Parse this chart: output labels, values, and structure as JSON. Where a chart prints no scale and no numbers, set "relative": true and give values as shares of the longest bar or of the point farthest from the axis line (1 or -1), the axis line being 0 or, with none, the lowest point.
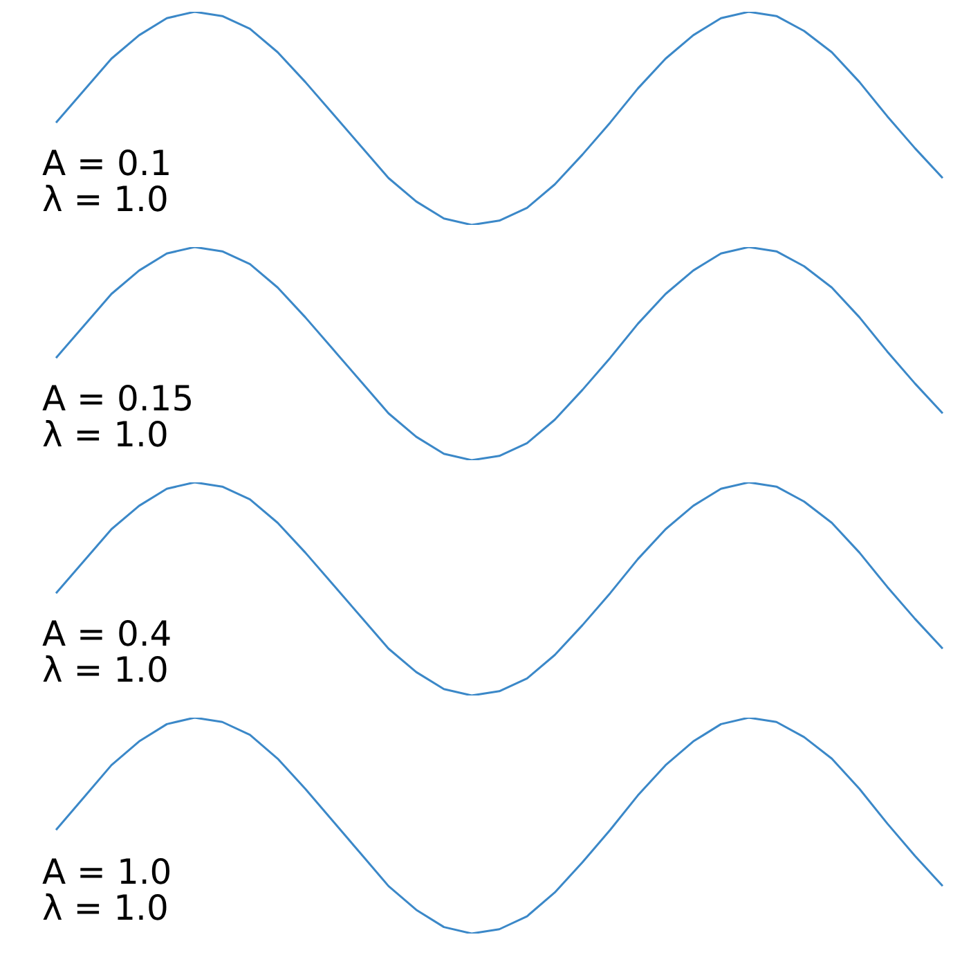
{
  "chart_data": [
    {
      "type": "line",
      "relative": true,
      "categories": [
        null,
        null,
        null,
        null,
        null,
        null,
        null,
        null,
        null,
        null,
        null,
        null,
        null,
        null,
        null,
        null,
        null,
        null,
        null,
        null,
        null,
        null,
        null,
        null,
        null,
        null,
        null,
        null,
        null,
        null,
        null,
        null,
        null
      ],
      "series": [
        {
          "color": "#3b88c8",
          "values": [
            0.48,
            0.63,
            0.78,
            0.89,
            0.97,
            1.0,
            0.98,
            0.92,
            0.81,
            0.67,
            0.52,
            0.37,
            0.22,
            0.11,
            0.03,
            0.0,
            0.02,
            0.08,
            0.19,
            0.33,
            0.48,
            0.64,
            0.78,
            0.89,
            0.97,
            1.0,
            0.98,
            0.91,
            0.81,
            0.67,
            0.51,
            0.36,
            0.22
          ]
        }
      ],
      "annotations": [
        "A = 0.1",
        "λ = 1.0"
      ]
    },
    {
      "type": "line",
      "relative": true,
      "categories": [
        null,
        null,
        null,
        null,
        null,
        null,
        null,
        null,
        null,
        null,
        null,
        null,
        null,
        null,
        null,
        null,
        null,
        null,
        null,
        null,
        null,
        null,
        null,
        null,
        null,
        null,
        null,
        null,
        null,
        null,
        null,
        null,
        null
      ],
      "series": [
        {
          "color": "#3b88c8",
          "values": [
            0.48,
            0.63,
            0.78,
            0.89,
            0.97,
            1.0,
            0.98,
            0.92,
            0.81,
            0.67,
            0.52,
            0.37,
            0.22,
            0.11,
            0.03,
            0.0,
            0.02,
            0.08,
            0.19,
            0.33,
            0.48,
            0.64,
            0.78,
            0.89,
            0.97,
            1.0,
            0.98,
            0.91,
            0.81,
            0.67,
            0.51,
            0.36,
            0.22
          ]
        }
      ],
      "annotations": [
        "A = 0.15",
        "λ = 1.0"
      ]
    },
    {
      "type": "line",
      "relative": true,
      "categories": [
        null,
        null,
        null,
        null,
        null,
        null,
        null,
        null,
        null,
        null,
        null,
        null,
        null,
        null,
        null,
        null,
        null,
        null,
        null,
        null,
        null,
        null,
        null,
        null,
        null,
        null,
        null,
        null,
        null,
        null,
        null,
        null,
        null
      ],
      "series": [
        {
          "color": "#3b88c8",
          "values": [
            0.48,
            0.63,
            0.78,
            0.89,
            0.97,
            1.0,
            0.98,
            0.92,
            0.81,
            0.67,
            0.52,
            0.37,
            0.22,
            0.11,
            0.03,
            0.0,
            0.02,
            0.08,
            0.19,
            0.33,
            0.48,
            0.64,
            0.78,
            0.89,
            0.97,
            1.0,
            0.98,
            0.91,
            0.81,
            0.67,
            0.51,
            0.36,
            0.22
          ]
        }
      ],
      "annotations": [
        "A = 0.4",
        "λ = 1.0"
      ]
    },
    {
      "type": "line",
      "relative": true,
      "categories": [
        null,
        null,
        null,
        null,
        null,
        null,
        null,
        null,
        null,
        null,
        null,
        null,
        null,
        null,
        null,
        null,
        null,
        null,
        null,
        null,
        null,
        null,
        null,
        null,
        null,
        null,
        null,
        null,
        null,
        null,
        null,
        null,
        null
      ],
      "series": [
        {
          "color": "#3b88c8",
          "values": [
            0.48,
            0.63,
            0.78,
            0.89,
            0.97,
            1.0,
            0.98,
            0.92,
            0.81,
            0.67,
            0.52,
            0.37,
            0.22,
            0.11,
            0.03,
            0.0,
            0.02,
            0.08,
            0.19,
            0.33,
            0.48,
            0.64,
            0.78,
            0.89,
            0.97,
            1.0,
            0.98,
            0.91,
            0.81,
            0.67,
            0.51,
            0.36,
            0.22
          ]
        }
      ],
      "annotations": [
        "A = 1.0",
        "λ = 1.0"
      ]
    }
  ]
}
